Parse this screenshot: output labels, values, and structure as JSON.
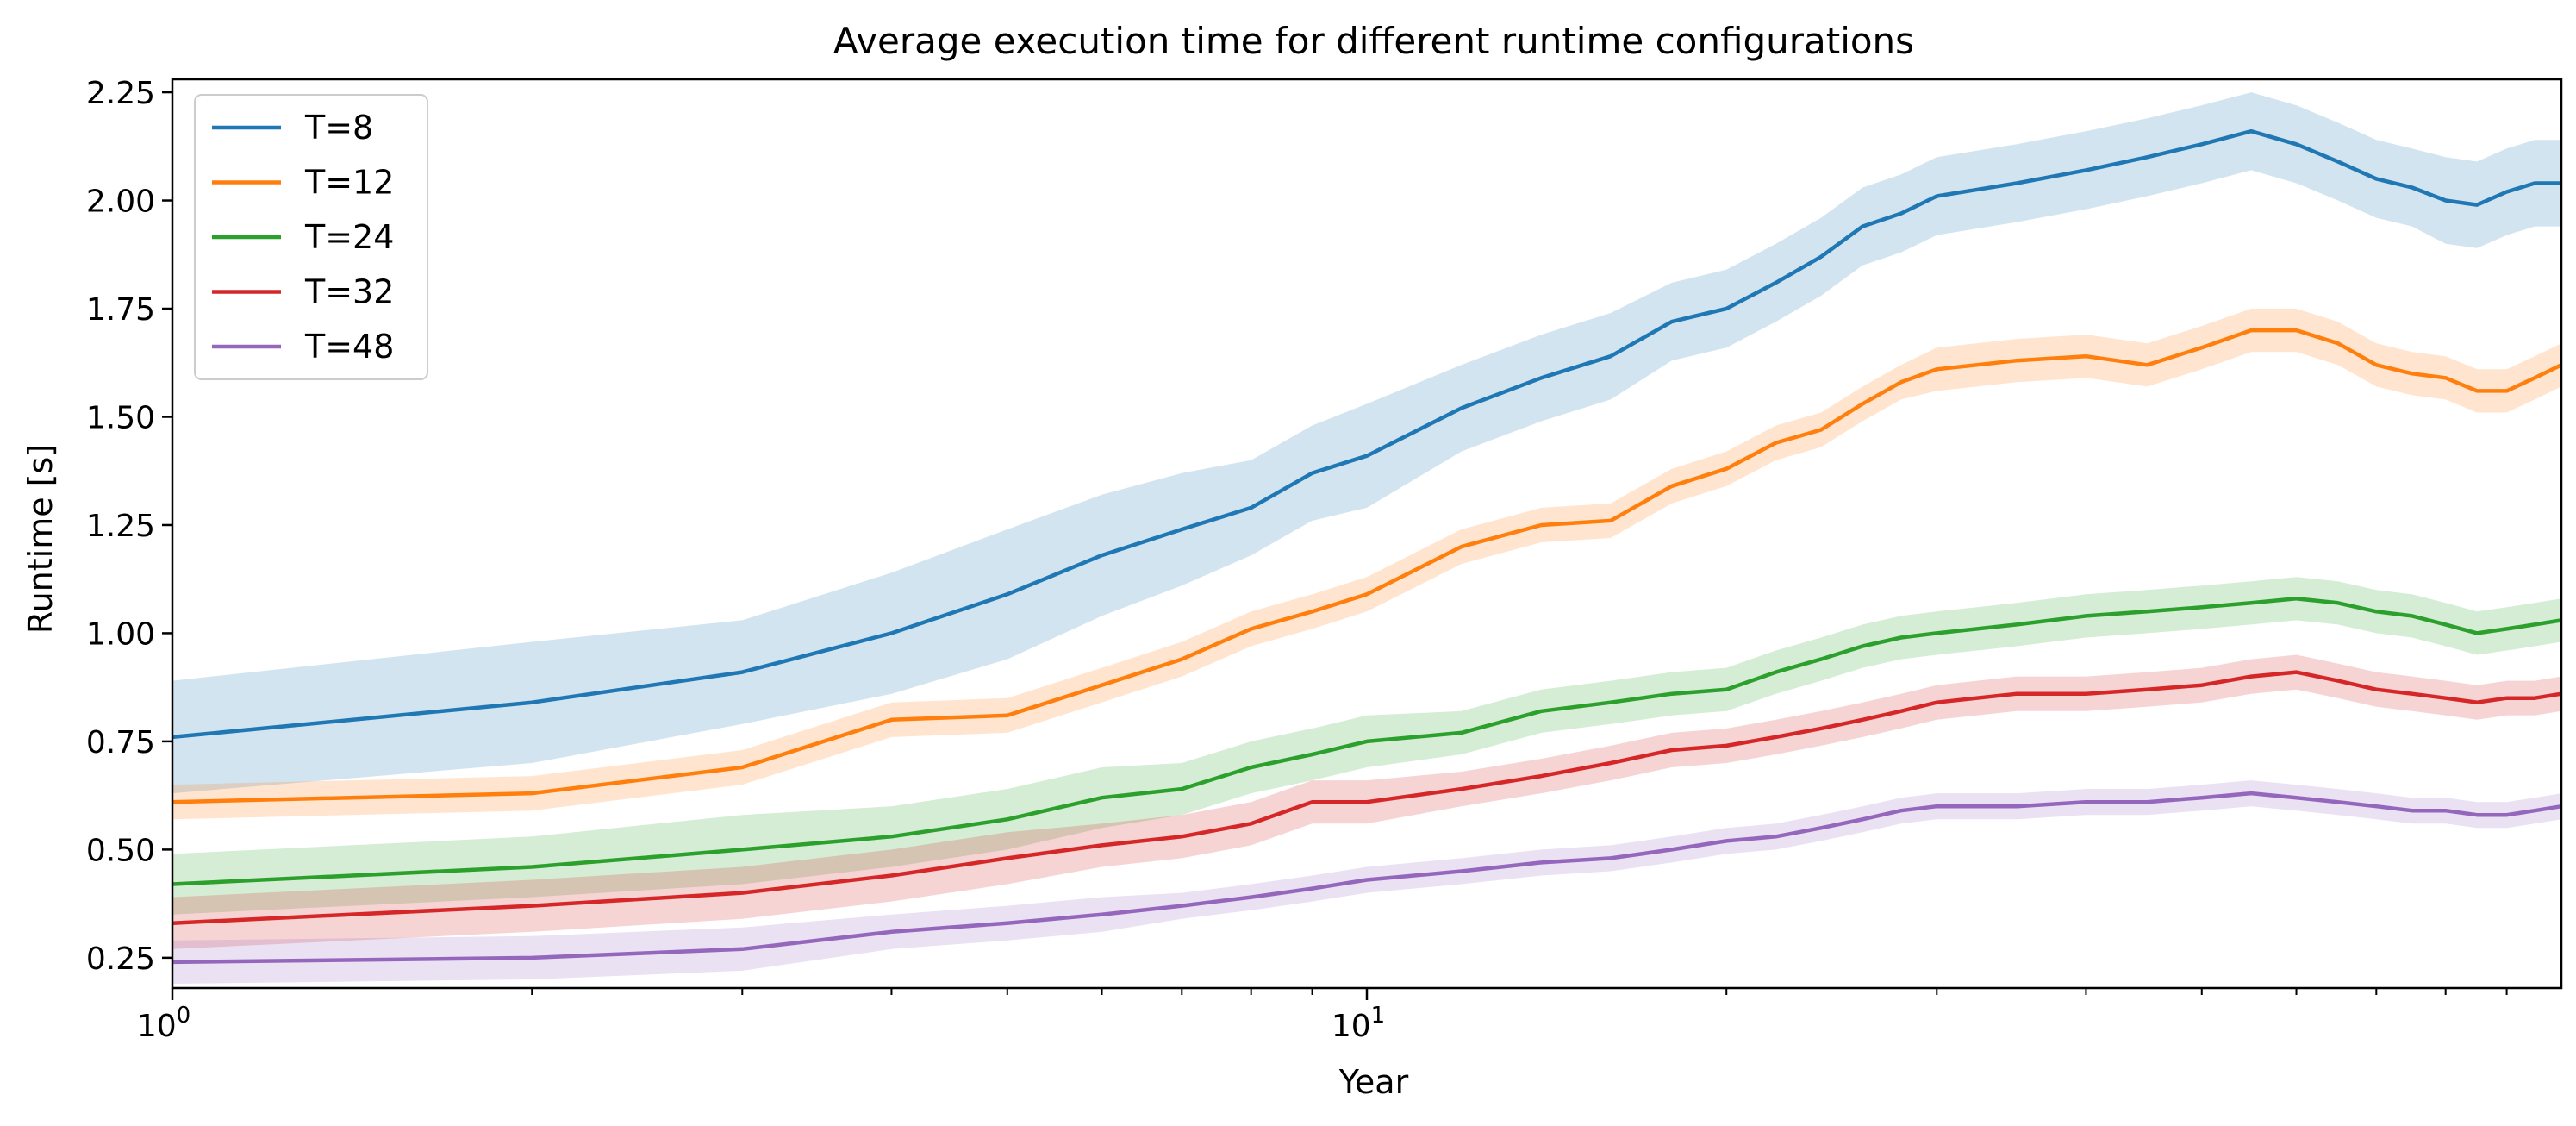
{
  "chart_data": {
    "type": "line",
    "title": "Average execution time for different runtime configurations",
    "xlabel": "Year",
    "ylabel": "Runtime [s]",
    "xscale": "log",
    "xlim": [
      1,
      100
    ],
    "ylim": [
      0.18,
      2.28
    ],
    "x_ticks": [
      {
        "value": 1,
        "base": "10",
        "exp": "0"
      },
      {
        "value": 10,
        "base": "10",
        "exp": "1"
      }
    ],
    "y_ticks": [
      "0.25",
      "0.50",
      "0.75",
      "1.00",
      "1.25",
      "1.50",
      "1.75",
      "2.00",
      "2.25"
    ],
    "grid": false,
    "legend_position": "upper-left",
    "shading": "band around each line (variability)",
    "x": [
      1,
      2,
      3,
      4,
      5,
      6,
      7,
      8,
      9,
      10,
      12,
      14,
      16,
      18,
      20,
      22,
      24,
      26,
      28,
      30,
      35,
      40,
      45,
      50,
      55,
      60,
      65,
      70,
      75,
      80,
      85,
      90,
      95,
      100
    ],
    "series": [
      {
        "name": "T=8",
        "color": "#1f77b4",
        "values": [
          0.76,
          0.84,
          0.91,
          1.0,
          1.09,
          1.18,
          1.24,
          1.29,
          1.37,
          1.41,
          1.52,
          1.59,
          1.64,
          1.72,
          1.75,
          1.81,
          1.87,
          1.94,
          1.97,
          2.01,
          2.04,
          2.07,
          2.1,
          2.13,
          2.16,
          2.13,
          2.09,
          2.05,
          2.03,
          2.0,
          1.99,
          2.02,
          2.04,
          2.04
        ],
        "band": [
          0.13,
          0.14,
          0.12,
          0.14,
          0.15,
          0.14,
          0.13,
          0.11,
          0.11,
          0.12,
          0.1,
          0.1,
          0.1,
          0.09,
          0.09,
          0.09,
          0.09,
          0.09,
          0.09,
          0.09,
          0.09,
          0.09,
          0.09,
          0.09,
          0.09,
          0.09,
          0.09,
          0.09,
          0.09,
          0.1,
          0.1,
          0.1,
          0.1,
          0.1
        ]
      },
      {
        "name": "T=12",
        "color": "#ff7f0e",
        "values": [
          0.61,
          0.63,
          0.69,
          0.8,
          0.81,
          0.88,
          0.94,
          1.01,
          1.05,
          1.09,
          1.2,
          1.25,
          1.26,
          1.34,
          1.38,
          1.44,
          1.47,
          1.53,
          1.58,
          1.61,
          1.63,
          1.64,
          1.62,
          1.66,
          1.7,
          1.7,
          1.67,
          1.62,
          1.6,
          1.59,
          1.56,
          1.56,
          1.59,
          1.62
        ],
        "band": [
          0.04,
          0.04,
          0.04,
          0.04,
          0.04,
          0.04,
          0.04,
          0.04,
          0.04,
          0.04,
          0.04,
          0.04,
          0.04,
          0.04,
          0.04,
          0.04,
          0.04,
          0.04,
          0.04,
          0.05,
          0.05,
          0.05,
          0.05,
          0.05,
          0.05,
          0.05,
          0.05,
          0.05,
          0.05,
          0.05,
          0.05,
          0.05,
          0.05,
          0.05
        ]
      },
      {
        "name": "T=24",
        "color": "#2ca02c",
        "values": [
          0.42,
          0.46,
          0.5,
          0.53,
          0.57,
          0.62,
          0.64,
          0.69,
          0.72,
          0.75,
          0.77,
          0.82,
          0.84,
          0.86,
          0.87,
          0.91,
          0.94,
          0.97,
          0.99,
          1.0,
          1.02,
          1.04,
          1.05,
          1.06,
          1.07,
          1.08,
          1.07,
          1.05,
          1.04,
          1.02,
          1.0,
          1.01,
          1.02,
          1.03
        ],
        "band": [
          0.07,
          0.07,
          0.08,
          0.07,
          0.07,
          0.07,
          0.06,
          0.06,
          0.06,
          0.06,
          0.05,
          0.05,
          0.05,
          0.05,
          0.05,
          0.05,
          0.05,
          0.05,
          0.05,
          0.05,
          0.05,
          0.05,
          0.05,
          0.05,
          0.05,
          0.05,
          0.05,
          0.05,
          0.05,
          0.05,
          0.05,
          0.05,
          0.05,
          0.05
        ]
      },
      {
        "name": "T=32",
        "color": "#d62728",
        "values": [
          0.33,
          0.37,
          0.4,
          0.44,
          0.48,
          0.51,
          0.53,
          0.56,
          0.61,
          0.61,
          0.64,
          0.67,
          0.7,
          0.73,
          0.74,
          0.76,
          0.78,
          0.8,
          0.82,
          0.84,
          0.86,
          0.86,
          0.87,
          0.88,
          0.9,
          0.91,
          0.89,
          0.87,
          0.86,
          0.85,
          0.84,
          0.85,
          0.85,
          0.86
        ],
        "band": [
          0.06,
          0.06,
          0.06,
          0.06,
          0.06,
          0.05,
          0.05,
          0.05,
          0.05,
          0.05,
          0.04,
          0.04,
          0.04,
          0.04,
          0.04,
          0.04,
          0.04,
          0.04,
          0.04,
          0.04,
          0.04,
          0.04,
          0.04,
          0.04,
          0.04,
          0.04,
          0.04,
          0.04,
          0.04,
          0.04,
          0.04,
          0.04,
          0.04,
          0.04
        ]
      },
      {
        "name": "T=48",
        "color": "#9467bd",
        "values": [
          0.24,
          0.25,
          0.27,
          0.31,
          0.33,
          0.35,
          0.37,
          0.39,
          0.41,
          0.43,
          0.45,
          0.47,
          0.48,
          0.5,
          0.52,
          0.53,
          0.55,
          0.57,
          0.59,
          0.6,
          0.6,
          0.61,
          0.61,
          0.62,
          0.63,
          0.62,
          0.61,
          0.6,
          0.59,
          0.59,
          0.58,
          0.58,
          0.59,
          0.6
        ],
        "band": [
          0.05,
          0.05,
          0.05,
          0.04,
          0.04,
          0.04,
          0.03,
          0.03,
          0.03,
          0.03,
          0.03,
          0.03,
          0.03,
          0.03,
          0.03,
          0.03,
          0.03,
          0.03,
          0.03,
          0.03,
          0.03,
          0.03,
          0.03,
          0.03,
          0.03,
          0.03,
          0.03,
          0.03,
          0.03,
          0.03,
          0.03,
          0.03,
          0.03,
          0.03
        ]
      }
    ]
  }
}
